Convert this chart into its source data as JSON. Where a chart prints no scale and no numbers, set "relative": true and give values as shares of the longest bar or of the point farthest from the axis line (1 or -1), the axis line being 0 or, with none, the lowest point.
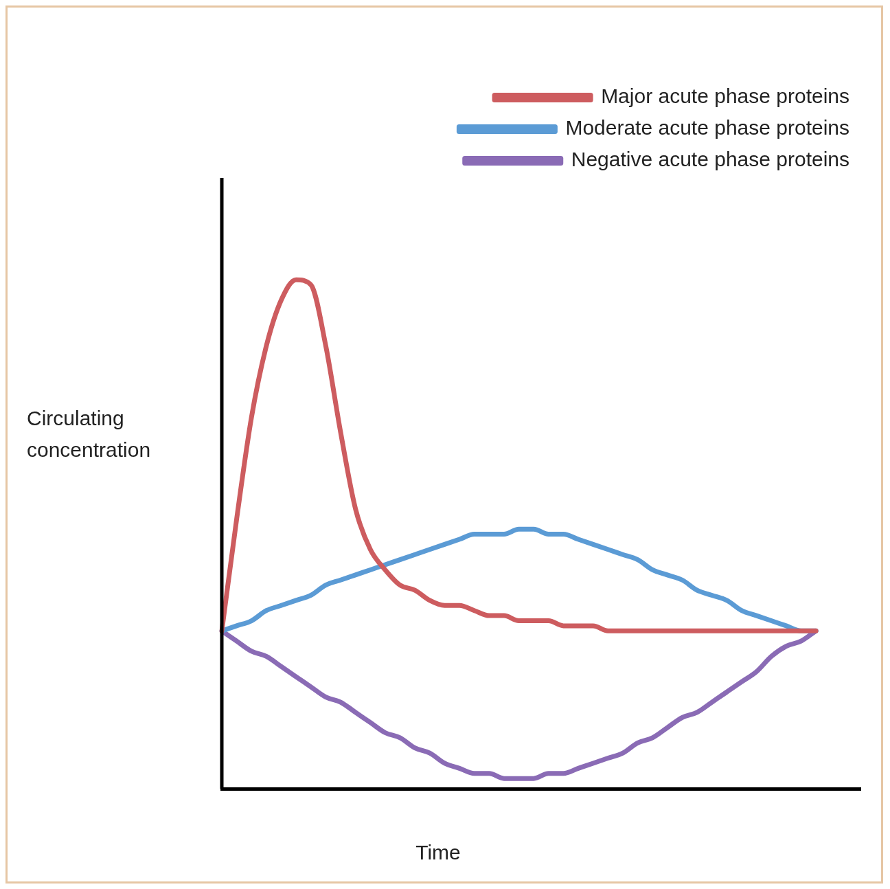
{
  "chart_data": {
    "type": "line",
    "xlabel": "Time",
    "ylabel": "Circulating concentration",
    "relative": true,
    "legend": "top right",
    "marker": "none",
    "line_style": "solid",
    "categories": [
      null,
      null,
      null,
      null,
      null,
      null,
      null,
      null,
      null,
      null,
      null,
      null,
      null,
      null,
      null,
      null,
      null,
      null,
      null,
      null,
      null,
      null,
      null,
      null,
      null,
      null,
      null,
      null,
      null,
      null,
      null,
      null,
      null,
      null,
      null,
      null,
      null,
      null,
      null,
      null,
      null,
      null,
      null,
      null
    ],
    "series": [
      {
        "name": "Major acute phase proteins",
        "color": "#cd5c5f",
        "values": [
          0.31,
          0.53,
          0.73,
          0.87,
          0.96,
          1,
          0.99,
          0.87,
          0.7,
          0.55,
          0.47,
          0.43,
          0.4,
          0.39,
          0.37,
          0.36,
          0.36,
          0.35,
          0.34,
          0.34,
          0.33,
          0.33,
          0.33,
          0.32,
          0.32,
          0.32,
          0.31,
          0.31,
          0.31,
          0.31,
          0.31,
          0.31,
          0.31,
          0.31,
          0.31,
          0.31,
          0.31,
          0.31,
          0.31,
          0.31,
          0.31,
          null,
          null,
          null
        ]
      },
      {
        "name": "Moderate acute phase proteins",
        "color": "#5b9bd5",
        "values": [
          0.31,
          0.32,
          0.33,
          0.35,
          0.36,
          0.37,
          0.38,
          0.4,
          0.41,
          0.42,
          0.43,
          0.44,
          0.45,
          0.46,
          0.47,
          0.48,
          0.49,
          0.5,
          0.5,
          0.5,
          0.51,
          0.51,
          0.5,
          0.5,
          0.49,
          0.48,
          0.47,
          0.46,
          0.45,
          0.43,
          0.42,
          0.41,
          0.39,
          0.38,
          0.37,
          0.35,
          0.34,
          0.33,
          0.32,
          0.31,
          0.31,
          null,
          null,
          null
        ]
      },
      {
        "name": "Negative acute phase proteins",
        "color": "#8a6bb5",
        "values": [
          0.31,
          0.29,
          0.27,
          0.26,
          0.24,
          0.22,
          0.2,
          0.18,
          0.17,
          0.15,
          0.13,
          0.11,
          0.1,
          0.08,
          0.07,
          0.05,
          0.04,
          0.03,
          0.03,
          0.02,
          0.02,
          0.02,
          0.03,
          0.03,
          0.04,
          0.05,
          0.06,
          0.07,
          0.09,
          0.1,
          0.12,
          0.14,
          0.15,
          0.17,
          0.19,
          0.21,
          0.23,
          0.26,
          0.28,
          0.29,
          0.31,
          null,
          null,
          null
        ]
      }
    ]
  }
}
